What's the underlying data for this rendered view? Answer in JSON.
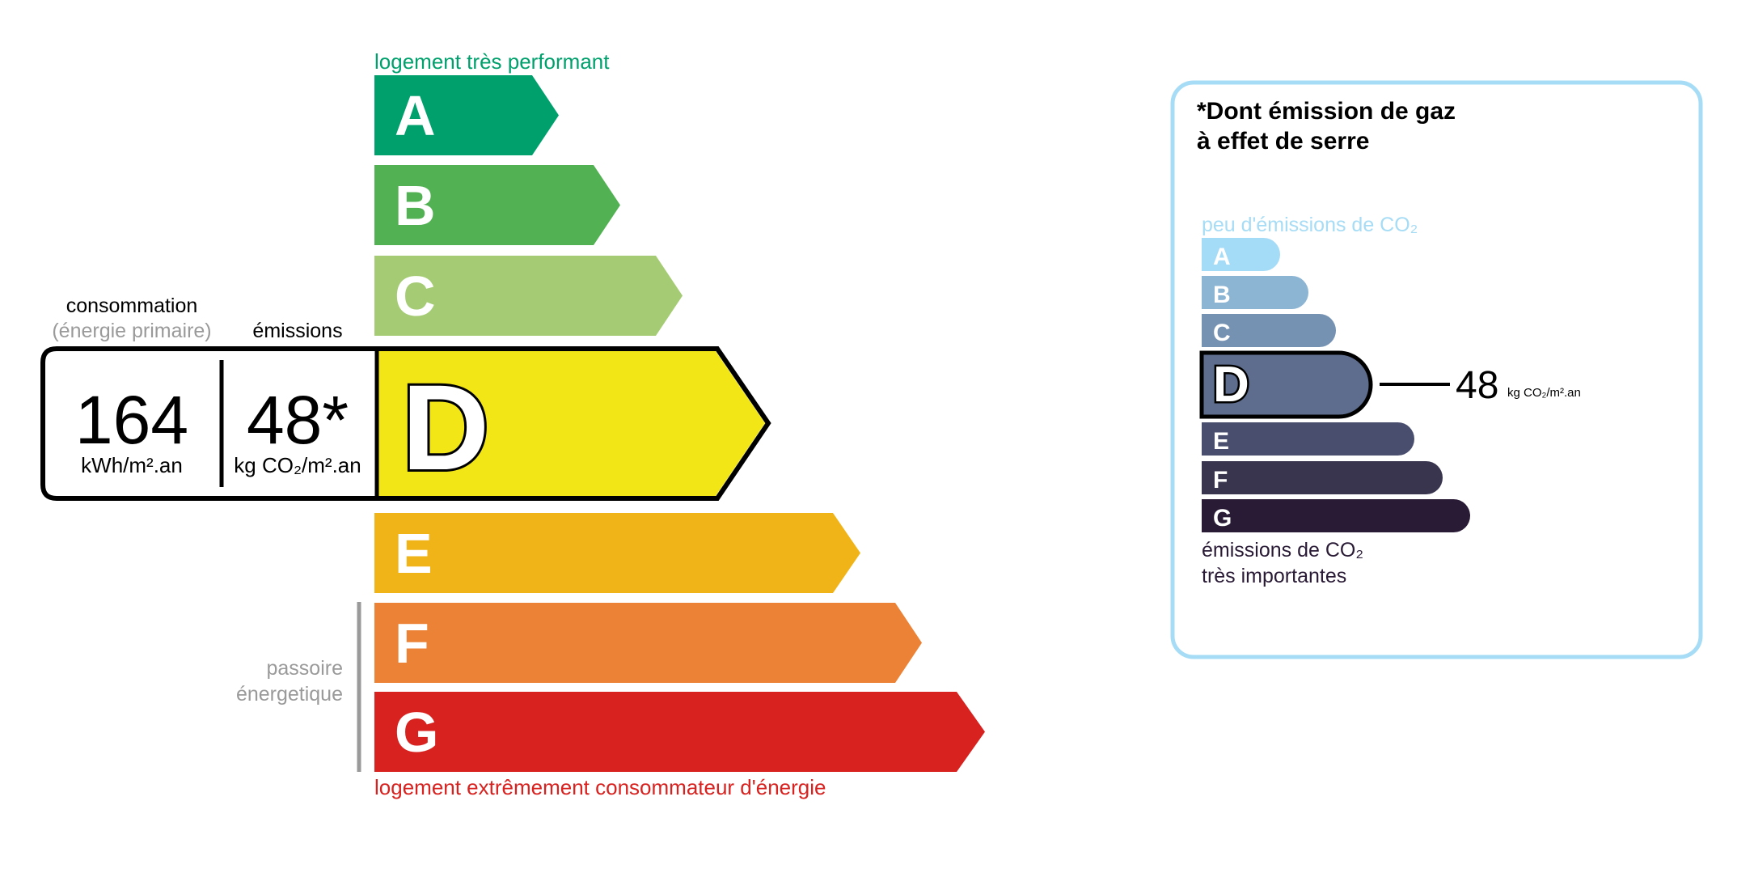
{
  "energy": {
    "top_label": "logement très performant",
    "bottom_label": "logement extrêmement consommateur d'énergie",
    "passoire_line1": "passoire",
    "passoire_line2": "énergetique",
    "consumption_label": "consommation",
    "consumption_sublabel": "(énergie primaire)",
    "emissions_label": "émissions",
    "consumption_value": "164",
    "consumption_unit": "kWh/m².an",
    "emissions_value": "48*",
    "emissions_unit": "kg CO₂/m².an",
    "current_class": "D",
    "classes": [
      {
        "letter": "A",
        "color": "#00a06d"
      },
      {
        "letter": "B",
        "color": "#52b153"
      },
      {
        "letter": "C",
        "color": "#a5cc74"
      },
      {
        "letter": "D",
        "color": "#f2e617"
      },
      {
        "letter": "E",
        "color": "#f0b418"
      },
      {
        "letter": "F",
        "color": "#eb8235"
      },
      {
        "letter": "G",
        "color": "#d7221f"
      }
    ],
    "top_label_color": "#00a06d",
    "bottom_label_color": "#d7221f"
  },
  "ghg": {
    "title_line1": "*Dont émission de gaz",
    "title_line2": "à effet de serre",
    "top_label": "peu d'émissions de CO₂",
    "bottom_label_line1": "émissions de CO₂",
    "bottom_label_line2": "très importantes",
    "value": "48",
    "unit": "kg CO₂/m².an",
    "current_class": "D",
    "border_color": "#a6dcf5",
    "classes": [
      {
        "letter": "A",
        "color": "#a4dbf7"
      },
      {
        "letter": "B",
        "color": "#8cb4d3"
      },
      {
        "letter": "C",
        "color": "#7592b3"
      },
      {
        "letter": "D",
        "color": "#5e6d8d"
      },
      {
        "letter": "E",
        "color": "#4a4e6e"
      },
      {
        "letter": "F",
        "color": "#39354f"
      },
      {
        "letter": "G",
        "color": "#291a35"
      }
    ]
  }
}
